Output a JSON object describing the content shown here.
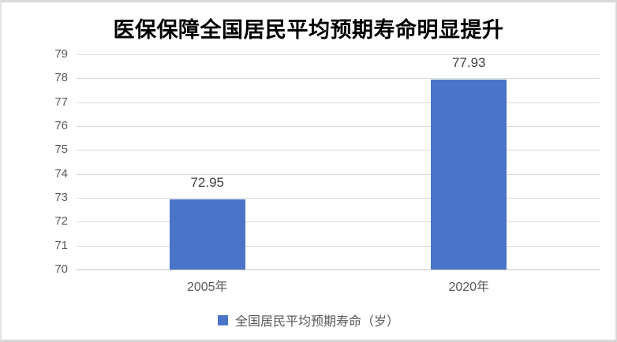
{
  "chart_data": {
    "type": "bar",
    "title": "医保保障全国居民平均预期寿命明显提升",
    "categories": [
      "2005年",
      "2020年"
    ],
    "values": [
      72.95,
      77.93
    ],
    "value_labels": [
      "72.95",
      "77.93"
    ],
    "series_name": "全国居民平均预期寿命（岁）",
    "ylim": [
      70,
      79
    ],
    "yticks": [
      70,
      71,
      72,
      73,
      74,
      75,
      76,
      77,
      78,
      79
    ],
    "xlabel": "",
    "ylabel": "",
    "grid": true,
    "legend": {
      "label": "全国居民平均预期寿命（岁）",
      "position": "bottom",
      "swatch_color": "#4A74C8"
    },
    "colors": {
      "bar": "#4A74C8",
      "gridline": "#D9D9D9",
      "axis_line": "#C0C0C0",
      "tick_label": "#595959",
      "value_label": "#3F3F3F",
      "category_label": "#595959",
      "legend_label": "#595959",
      "title": "#000000"
    }
  }
}
